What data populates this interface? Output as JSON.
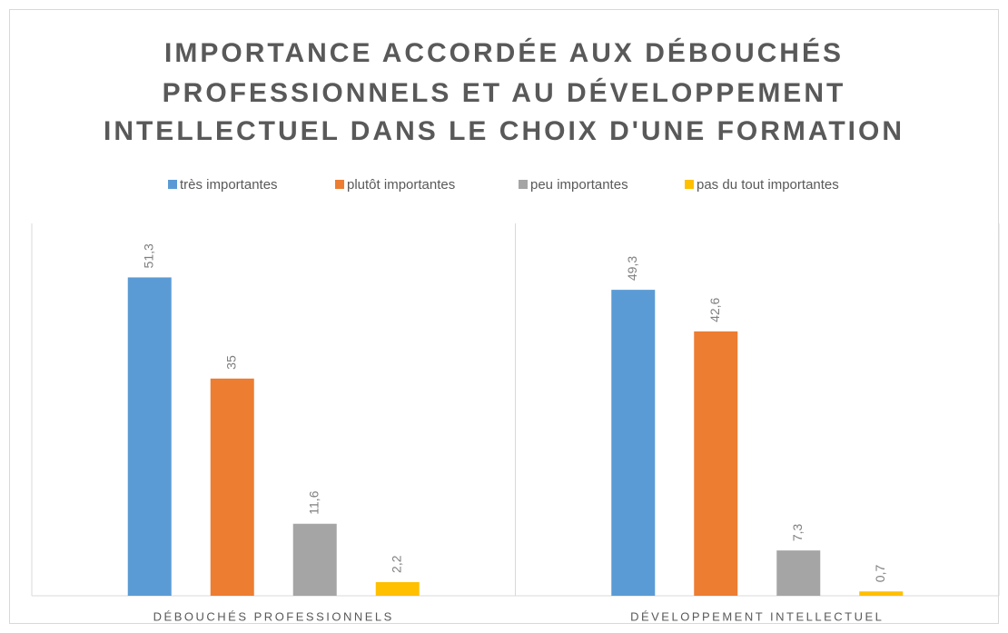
{
  "chart_data": {
    "type": "bar",
    "title": [
      "IMPORTANCE ACCORDÉE AUX DÉBOUCHÉS",
      "PROFESSIONNELS ET AU DÉVELOPPEMENT",
      "INTELLECTUEL DANS LE CHOIX D'UNE FORMATION"
    ],
    "categories": [
      "DÉBOUCHÉS PROFESSIONNELS",
      "DÉVELOPPEMENT INTELLECTUEL"
    ],
    "series": [
      {
        "name": "très importantes",
        "color": "#5b9bd5",
        "values": [
          51.3,
          49.3
        ],
        "value_labels": [
          "51,3",
          "49,3"
        ]
      },
      {
        "name": "plutôt importantes",
        "color": "#ed7d31",
        "values": [
          35,
          42.6
        ],
        "value_labels": [
          "35",
          "42,6"
        ]
      },
      {
        "name": "peu importantes",
        "color": "#a5a5a5",
        "values": [
          11.6,
          7.3
        ],
        "value_labels": [
          "11,6",
          "7,3"
        ]
      },
      {
        "name": "pas du tout importantes",
        "color": "#ffc000",
        "values": [
          2.2,
          0.7
        ],
        "value_labels": [
          "2,2",
          "0,7"
        ]
      }
    ],
    "ylim": [
      0,
      60
    ],
    "legend": "top"
  }
}
